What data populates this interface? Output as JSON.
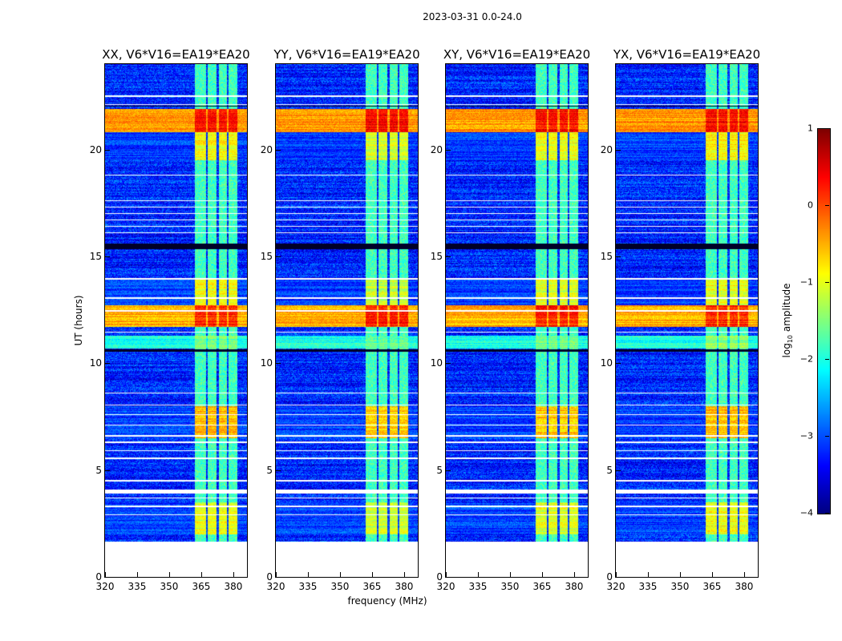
{
  "chart_data": {
    "type": "heatmap",
    "title": "2023-03-31 0.0-24.0",
    "xlabel": "frequency (MHz)",
    "ylabel": "UT (hours)",
    "xlim": [
      320,
      386.4
    ],
    "ylim": [
      0,
      24
    ],
    "xticks": [
      "320",
      "335",
      "350",
      "365",
      "380"
    ],
    "xtick_values": [
      320,
      335,
      350,
      365,
      380
    ],
    "yticks": [
      "0",
      "5",
      "10",
      "15",
      "20"
    ],
    "ytick_values": [
      0,
      5,
      10,
      15,
      20
    ],
    "panels": [
      {
        "title": "XX, V6*V16=EA19*EA20",
        "rfi_gain": 1.0
      },
      {
        "title": "YY, V6*V16=EA19*EA20",
        "rfi_gain": 1.15
      },
      {
        "title": "XY, V6*V16=EA19*EA20",
        "rfi_gain": 1.05
      },
      {
        "title": "YX, V6*V16=EA19*EA20",
        "rfi_gain": 0.95
      }
    ],
    "colorbar": {
      "label_prefix": "log",
      "label_sub": "10",
      "label_suffix": " amplitude",
      "range": [
        -4,
        1
      ],
      "ticks": [
        "1",
        "0",
        "−1",
        "−2",
        "−3",
        "−4"
      ],
      "tick_values": [
        1,
        0,
        -1,
        -2,
        -3,
        -4
      ],
      "colormap": "jet"
    },
    "data_start_hour": 1.65,
    "background_log_amplitude": -3.2,
    "rfi_channels_mhz": [
      [
        362.0,
        367.3
      ],
      [
        368.0,
        372.1
      ],
      [
        373.3,
        377.1
      ],
      [
        377.8,
        381.9
      ]
    ],
    "bright_intervals_hours": [
      {
        "range": [
          20.8,
          21.9
        ],
        "broadband": -0.4,
        "rfi": 0.3
      },
      {
        "range": [
          11.7,
          12.7
        ],
        "broadband": -0.5,
        "rfi": 0.2
      },
      {
        "range": [
          10.7,
          11.3
        ],
        "broadband": -2.0,
        "rfi": -1.5
      },
      {
        "range": [
          19.5,
          20.8
        ],
        "broadband": -3.2,
        "rfi": -0.9
      },
      {
        "range": [
          12.7,
          14.0
        ],
        "broadband": -3.2,
        "rfi": -1.0
      },
      {
        "range": [
          6.5,
          8.0
        ],
        "broadband": -3.2,
        "rfi": -0.6
      },
      {
        "range": [
          2.0,
          3.5
        ],
        "broadband": -3.2,
        "rfi": -1.0
      }
    ],
    "flagged_rows_hours": [
      22.5,
      22.1,
      18.8,
      17.6,
      17.3,
      17.0,
      16.7,
      16.4,
      16.1,
      13.95,
      13.05,
      12.45,
      11.45,
      8.6,
      8.05,
      7.6,
      7.1,
      6.6,
      6.3,
      5.9,
      5.55,
      4.5,
      3.7,
      3.3,
      2.9
    ],
    "flagged_wide_hours": [
      [
        3.9,
        4.1
      ]
    ],
    "dark_rows_hours": [
      [
        15.35,
        15.6
      ],
      [
        10.55,
        10.65
      ],
      [
        22.0,
        22.05
      ],
      [
        20.2,
        20.23
      ]
    ]
  }
}
